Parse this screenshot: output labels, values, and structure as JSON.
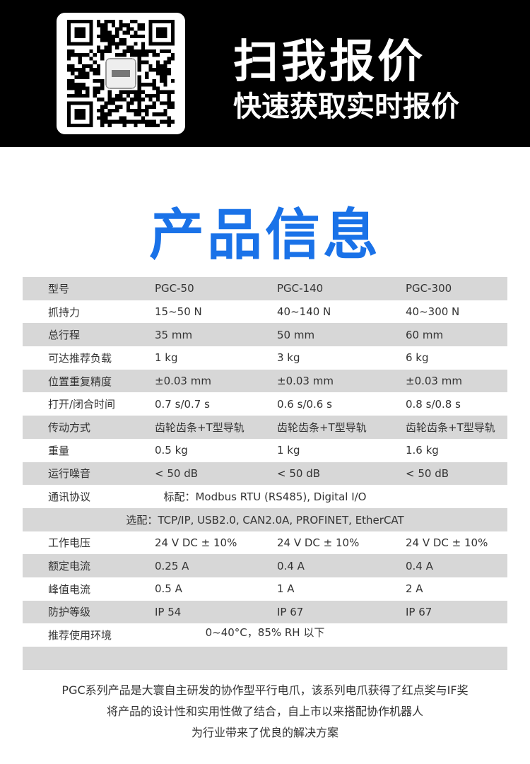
{
  "banner": {
    "headline": "扫我报价",
    "subline": "快速获取实时报价",
    "qr_icon": "qr-code"
  },
  "title": "产品信息",
  "colors": {
    "title": "#1a72e8",
    "banner": "#000000",
    "stripe": "#d7d7d7"
  },
  "rows": [
    {
      "cells": [
        "型号",
        "PGC-50",
        "PGC-140",
        "PGC-300"
      ]
    },
    {
      "cells": [
        "抓持力",
        "15~50 N",
        "40~140 N",
        "40~300 N"
      ]
    },
    {
      "cells": [
        "总行程",
        "35 mm",
        "50 mm",
        "60 mm"
      ]
    },
    {
      "cells": [
        "可达推荐负载",
        "1 kg",
        "3 kg",
        "6 kg"
      ]
    },
    {
      "cells": [
        "位置重复精度",
        "±0.03 mm",
        "±0.03 mm",
        "±0.03 mm"
      ]
    },
    {
      "cells": [
        "打开/闭合时间",
        "0.7 s/0.7 s",
        "0.6 s/0.6 s",
        "0.8 s/0.8 s"
      ]
    },
    {
      "cells": [
        "传动方式",
        "齿轮齿条+T型导轨",
        "齿轮齿条+T型导轨",
        "齿轮齿条+T型导轨"
      ]
    },
    {
      "cells": [
        "重量",
        "0.5 kg",
        "1 kg",
        "1.6 kg"
      ]
    },
    {
      "cells": [
        "运行噪音",
        "< 50 dB",
        "< 50 dB",
        "< 50 dB"
      ]
    },
    {
      "cells": [
        "通讯协议"
      ],
      "span": "标配：Modbus RTU (RS485), Digital I/O"
    },
    {
      "cells": [
        ""
      ],
      "span": "选配：TCP/IP, USB2.0, CAN2.0A, PROFINET, EtherCAT"
    },
    {
      "cells": [
        "工作电压",
        "24 V DC ± 10%",
        "24 V DC ± 10%",
        "24 V DC ± 10%"
      ]
    },
    {
      "cells": [
        "额定电流",
        "0.25 A",
        "0.4 A",
        "0.4 A"
      ]
    },
    {
      "cells": [
        "峰值电流",
        "0.5 A",
        "1 A",
        "2 A"
      ]
    },
    {
      "cells": [
        "防护等级",
        "IP 54",
        "IP 67",
        "IP 67"
      ]
    },
    {
      "cells": [
        "推荐使用环境"
      ],
      "span": "0~40°C，85% RH 以下"
    },
    {
      "cells": [
        ""
      ]
    }
  ],
  "footer": [
    "PGC系列产品是大寰自主研发的协作型平行电爪，该系列电爪获得了红点奖与IF奖",
    "将产品的设计性和实用性做了结合，自上市以来搭配协作机器人",
    "为行业带来了优良的解决方案"
  ]
}
